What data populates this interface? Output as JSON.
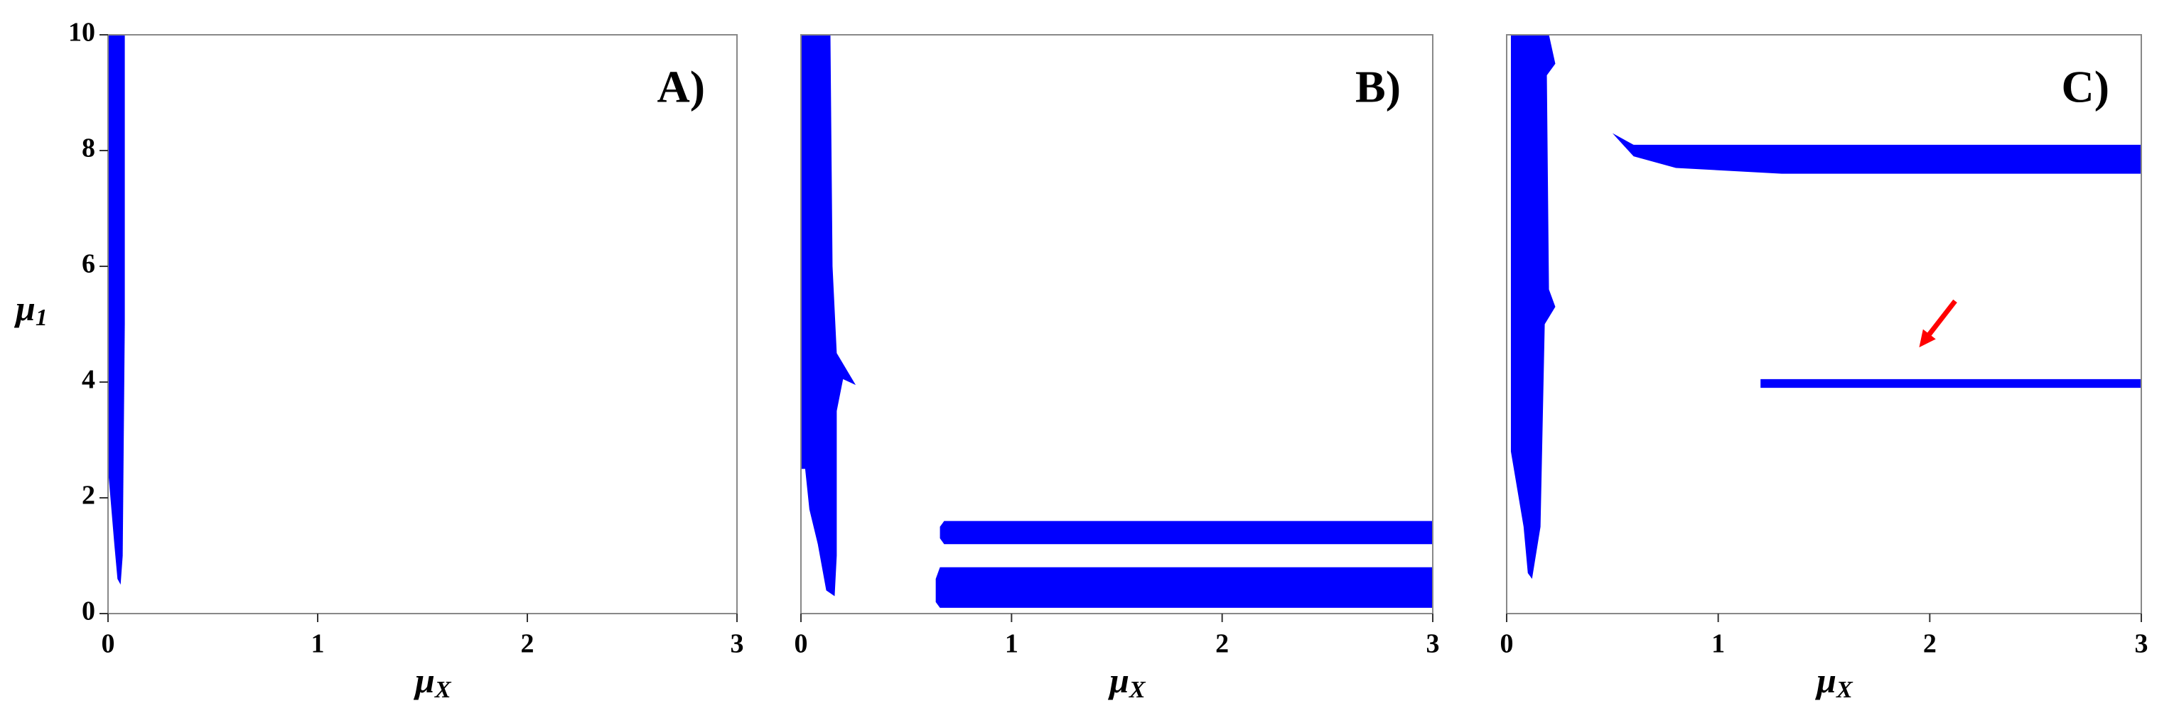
{
  "chart_data": [
    {
      "type": "region",
      "panel_label": "A)",
      "x_label": {
        "symbol": "μ",
        "subscript": "X"
      },
      "y_label": {
        "symbol": "μ",
        "subscript": "1"
      },
      "xlim": [
        0,
        3
      ],
      "ylim": [
        0,
        10
      ],
      "xticks": [
        0,
        1,
        2,
        3
      ],
      "yticks": [
        0,
        2,
        4,
        6,
        8,
        10
      ],
      "color": "#0000ff",
      "regions": [
        {
          "x": [
            0,
            0.08,
            0.08,
            0.07,
            0.06,
            0.045,
            0.03,
            0
          ],
          "y": [
            10,
            10,
            5,
            1,
            0.5,
            0.6,
            1.2,
            2.5
          ]
        }
      ]
    },
    {
      "type": "region",
      "panel_label": "B)",
      "x_label": {
        "symbol": "μ",
        "subscript": "X"
      },
      "xlim": [
        0,
        3
      ],
      "ylim": [
        0,
        10
      ],
      "xticks": [
        0,
        1,
        2,
        3
      ],
      "color": "#0000ff",
      "regions": [
        {
          "x": [
            0,
            0.14,
            0.15,
            0.17,
            0.26,
            0.2,
            0.17,
            0.17,
            0.16,
            0.12,
            0.08,
            0.04,
            0.02,
            0
          ],
          "y": [
            10,
            10,
            6,
            4.5,
            3.95,
            4.05,
            3.5,
            1,
            0.3,
            0.4,
            1.2,
            1.8,
            2.5,
            2.5
          ]
        },
        {
          "x": [
            0.66,
            0.68,
            3,
            3,
            0.68,
            0.66
          ],
          "y": [
            1.5,
            1.6,
            1.6,
            1.2,
            1.2,
            1.3
          ]
        },
        {
          "x": [
            0.64,
            0.66,
            3,
            3,
            0.66,
            0.64
          ],
          "y": [
            0.6,
            0.8,
            0.8,
            0.1,
            0.1,
            0.2
          ]
        }
      ]
    },
    {
      "type": "region",
      "panel_label": "C)",
      "x_label": {
        "symbol": "μ",
        "subscript": "X"
      },
      "xlim": [
        0,
        3
      ],
      "ylim": [
        0,
        10
      ],
      "xticks": [
        0,
        1,
        2,
        3
      ],
      "color": "#0000ff",
      "regions": [
        {
          "x": [
            0.02,
            0.2,
            0.23,
            0.19,
            0.2,
            0.23,
            0.18,
            0.16,
            0.12,
            0.1,
            0.08,
            0.02
          ],
          "y": [
            10,
            10,
            9.5,
            9.3,
            5.6,
            5.3,
            5.0,
            1.5,
            0.6,
            0.7,
            1.5,
            2.8
          ]
        },
        {
          "x": [
            0.5,
            0.6,
            1.2,
            3,
            3,
            1.3,
            0.8,
            0.6
          ],
          "y": [
            8.3,
            8.1,
            8.1,
            8.1,
            7.6,
            7.6,
            7.7,
            7.9
          ]
        },
        {
          "x": [
            1.2,
            3,
            3,
            1.2
          ],
          "y": [
            4.05,
            4.05,
            3.9,
            3.9
          ]
        }
      ],
      "arrow": {
        "x": [
          2.12,
          1.95
        ],
        "y": [
          5.4,
          4.6
        ],
        "color": "#ff0000"
      }
    }
  ]
}
